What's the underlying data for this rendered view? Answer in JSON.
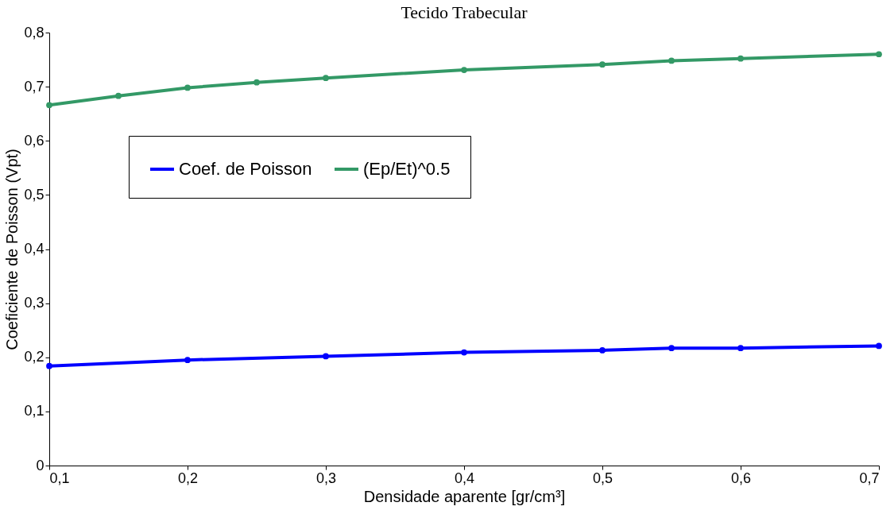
{
  "chart_data": {
    "type": "line",
    "title": "Tecido Trabecular",
    "xlabel": "Densidade aparente [gr/cm³]",
    "ylabel": "Coeficiente de Poisson (Vpt)",
    "xlim": [
      0.1,
      0.7
    ],
    "ylim": [
      0,
      0.8
    ],
    "xticks": [
      {
        "value": 0.1,
        "label": "0,1"
      },
      {
        "value": 0.2,
        "label": "0,2"
      },
      {
        "value": 0.3,
        "label": "0,3"
      },
      {
        "value": 0.4,
        "label": "0,4"
      },
      {
        "value": 0.5,
        "label": "0,5"
      },
      {
        "value": 0.6,
        "label": "0,6"
      },
      {
        "value": 0.7,
        "label": "0,7"
      }
    ],
    "yticks": [
      0,
      {
        "value": 0.1,
        "label": "0,1"
      },
      {
        "value": 0.2,
        "label": "0,2"
      },
      {
        "value": 0.3,
        "label": "0,3"
      },
      {
        "value": 0.4,
        "label": "0,4"
      },
      {
        "value": 0.5,
        "label": "0,5"
      },
      {
        "value": 0.6,
        "label": "0,6"
      },
      {
        "value": 0.7,
        "label": "0,7"
      },
      {
        "value": 0.8,
        "label": "0,8"
      }
    ],
    "grid": false,
    "legend": "left",
    "marker": "circle",
    "line_style": "solid",
    "series": [
      {
        "name": "Coef. de Poisson",
        "color": "#0000ff",
        "x": [
          0.1,
          0.2,
          0.3,
          0.4,
          0.5,
          0.55,
          0.6,
          0.7
        ],
        "values": [
          0.184,
          0.195,
          0.202,
          0.209,
          0.213,
          0.217,
          0.217,
          0.221
        ]
      },
      {
        "name": "(Ep/Et)^0.5",
        "color": "#339966",
        "x": [
          0.1,
          0.15,
          0.2,
          0.25,
          0.3,
          0.4,
          0.5,
          0.55,
          0.6,
          0.7
        ],
        "values": [
          0.666,
          0.683,
          0.698,
          0.708,
          0.716,
          0.731,
          0.741,
          0.748,
          0.752,
          0.76
        ]
      }
    ]
  }
}
